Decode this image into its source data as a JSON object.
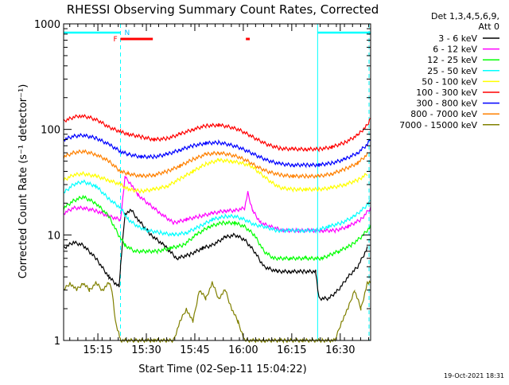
{
  "chart_data": {
    "type": "line",
    "title": "RHESSI Observing Summary Count Rates, Corrected",
    "xlabel": "Start Time (02-Sep-11 15:04:22)",
    "ylabel": "Corrected Count Rate (s⁻¹ detector⁻¹)",
    "x_unit": "minutes after 15:04:22",
    "xlim": [
      0,
      95
    ],
    "ylim": [
      1,
      1000
    ],
    "yscale": "log",
    "x_ticks": [
      {
        "t": 10.6,
        "label": "15:15"
      },
      {
        "t": 25.6,
        "label": "15:30"
      },
      {
        "t": 40.6,
        "label": "15:45"
      },
      {
        "t": 55.6,
        "label": "16:00"
      },
      {
        "t": 70.6,
        "label": "16:15"
      },
      {
        "t": 85.6,
        "label": "16:30"
      }
    ],
    "y_ticks": [
      {
        "v": 1,
        "label": "1"
      },
      {
        "v": 10,
        "label": "10"
      },
      {
        "v": 100,
        "label": "100"
      },
      {
        "v": 1000,
        "label": "1000"
      }
    ],
    "legend_header": [
      "Det 1,3,4,5,6,9,",
      "Att 0"
    ],
    "legend_position": "right",
    "grid": false,
    "night_spans": [
      [
        0,
        17.6
      ],
      [
        78.6,
        95
      ]
    ],
    "saa_mark": "N",
    "flare_mark": "F",
    "flare_spans": [
      [
        17.6,
        27.6
      ],
      [
        56.4,
        57.6
      ]
    ],
    "series": [
      {
        "name": "3 - 6 keV",
        "color": "#000000",
        "points": [
          [
            0,
            7.5
          ],
          [
            3,
            8.5
          ],
          [
            6,
            8
          ],
          [
            10,
            6
          ],
          [
            14,
            4
          ],
          [
            17.2,
            3.2
          ],
          [
            17.6,
            5
          ],
          [
            19,
            16
          ],
          [
            21,
            17
          ],
          [
            23,
            14
          ],
          [
            27,
            10
          ],
          [
            31,
            8
          ],
          [
            35,
            6
          ],
          [
            39,
            6.5
          ],
          [
            43,
            7.5
          ],
          [
            46,
            8
          ],
          [
            50,
            9.5
          ],
          [
            53,
            10
          ],
          [
            56,
            9
          ],
          [
            59,
            7
          ],
          [
            62,
            5
          ],
          [
            66,
            4.5
          ],
          [
            70,
            4.5
          ],
          [
            74,
            4.5
          ],
          [
            78,
            4.5
          ],
          [
            79,
            2.5
          ],
          [
            82,
            2.5
          ],
          [
            85,
            3
          ],
          [
            88,
            4
          ],
          [
            91,
            5
          ],
          [
            94,
            7.5
          ]
        ]
      },
      {
        "name": "6 - 12 keV",
        "color": "#ff00ff",
        "points": [
          [
            0,
            16
          ],
          [
            3,
            18
          ],
          [
            6,
            18
          ],
          [
            10,
            17
          ],
          [
            14,
            15
          ],
          [
            17.6,
            14
          ],
          [
            19,
            35
          ],
          [
            21,
            30
          ],
          [
            23,
            24
          ],
          [
            26,
            20
          ],
          [
            30,
            16
          ],
          [
            34,
            13
          ],
          [
            38,
            14
          ],
          [
            42,
            15
          ],
          [
            46,
            16
          ],
          [
            50,
            17
          ],
          [
            53,
            17
          ],
          [
            56,
            18
          ],
          [
            57,
            25
          ],
          [
            58.5,
            17
          ],
          [
            61,
            13
          ],
          [
            64,
            12
          ],
          [
            68,
            11
          ],
          [
            72,
            11
          ],
          [
            76,
            11
          ],
          [
            80,
            11
          ],
          [
            84,
            11
          ],
          [
            88,
            12
          ],
          [
            92,
            14
          ],
          [
            95,
            18
          ]
        ]
      },
      {
        "name": "12 - 25 keV",
        "color": "#00ff00",
        "points": [
          [
            0,
            18
          ],
          [
            3,
            21
          ],
          [
            6,
            23
          ],
          [
            10,
            20
          ],
          [
            14,
            15
          ],
          [
            17,
            10
          ],
          [
            19,
            8
          ],
          [
            22,
            7
          ],
          [
            25,
            7
          ],
          [
            29,
            7
          ],
          [
            33,
            7.5
          ],
          [
            37,
            8
          ],
          [
            41,
            10
          ],
          [
            45,
            12
          ],
          [
            49,
            13
          ],
          [
            53,
            13
          ],
          [
            56,
            12
          ],
          [
            59,
            10
          ],
          [
            62,
            7
          ],
          [
            65,
            6
          ],
          [
            70,
            6
          ],
          [
            75,
            6
          ],
          [
            80,
            6
          ],
          [
            85,
            7
          ],
          [
            89,
            8
          ],
          [
            92,
            9.5
          ],
          [
            95,
            12
          ]
        ]
      },
      {
        "name": "25 - 50 keV",
        "color": "#00ffff",
        "points": [
          [
            0,
            25
          ],
          [
            3,
            30
          ],
          [
            6,
            32
          ],
          [
            10,
            29
          ],
          [
            14,
            22
          ],
          [
            17.6,
            18
          ],
          [
            20,
            14
          ],
          [
            23,
            12
          ],
          [
            26,
            11
          ],
          [
            30,
            10.5
          ],
          [
            34,
            10
          ],
          [
            38,
            10.5
          ],
          [
            42,
            12
          ],
          [
            46,
            14
          ],
          [
            50,
            15
          ],
          [
            53,
            15
          ],
          [
            56,
            14
          ],
          [
            59,
            12.5
          ],
          [
            62,
            12
          ],
          [
            66,
            11
          ],
          [
            70,
            11
          ],
          [
            74,
            11
          ],
          [
            78,
            11
          ],
          [
            82,
            12
          ],
          [
            86,
            13
          ],
          [
            90,
            15
          ],
          [
            93,
            18
          ],
          [
            95,
            21
          ]
        ]
      },
      {
        "name": "50 - 100 keV",
        "color": "#ffff00",
        "points": [
          [
            0,
            33
          ],
          [
            3,
            37
          ],
          [
            6,
            38
          ],
          [
            10,
            36
          ],
          [
            14,
            33
          ],
          [
            17.6,
            30
          ],
          [
            20,
            27
          ],
          [
            24,
            26
          ],
          [
            28,
            27
          ],
          [
            32,
            29
          ],
          [
            36,
            34
          ],
          [
            40,
            40
          ],
          [
            44,
            47
          ],
          [
            48,
            51
          ],
          [
            52,
            50
          ],
          [
            55,
            48
          ],
          [
            58,
            45
          ],
          [
            61,
            38
          ],
          [
            64,
            32
          ],
          [
            67,
            28
          ],
          [
            71,
            27
          ],
          [
            75,
            27
          ],
          [
            79,
            27
          ],
          [
            83,
            28
          ],
          [
            87,
            30
          ],
          [
            91,
            33
          ],
          [
            94,
            38
          ]
        ]
      },
      {
        "name": "100 - 300 keV",
        "color": "#ff0000",
        "points": [
          [
            0,
            120
          ],
          [
            3,
            130
          ],
          [
            5,
            135
          ],
          [
            8,
            130
          ],
          [
            11,
            120
          ],
          [
            14,
            105
          ],
          [
            17.6,
            95
          ],
          [
            20,
            90
          ],
          [
            24,
            85
          ],
          [
            28,
            80
          ],
          [
            32,
            82
          ],
          [
            36,
            90
          ],
          [
            40,
            100
          ],
          [
            44,
            108
          ],
          [
            48,
            110
          ],
          [
            51,
            106
          ],
          [
            54,
            100
          ],
          [
            57,
            90
          ],
          [
            60,
            80
          ],
          [
            63,
            72
          ],
          [
            67,
            66
          ],
          [
            71,
            65
          ],
          [
            75,
            65
          ],
          [
            79,
            65
          ],
          [
            83,
            68
          ],
          [
            87,
            75
          ],
          [
            91,
            88
          ],
          [
            94,
            110
          ],
          [
            95,
            130
          ]
        ]
      },
      {
        "name": "300 - 800 keV",
        "color": "#0000ff",
        "points": [
          [
            0,
            80
          ],
          [
            3,
            86
          ],
          [
            6,
            88
          ],
          [
            10,
            83
          ],
          [
            14,
            72
          ],
          [
            17.6,
            62
          ],
          [
            20,
            58
          ],
          [
            24,
            55
          ],
          [
            28,
            55
          ],
          [
            32,
            58
          ],
          [
            36,
            64
          ],
          [
            40,
            70
          ],
          [
            44,
            74
          ],
          [
            48,
            75
          ],
          [
            51,
            72
          ],
          [
            54,
            68
          ],
          [
            57,
            62
          ],
          [
            60,
            56
          ],
          [
            63,
            51
          ],
          [
            67,
            47
          ],
          [
            71,
            46
          ],
          [
            75,
            46
          ],
          [
            79,
            46
          ],
          [
            83,
            48
          ],
          [
            87,
            52
          ],
          [
            91,
            60
          ],
          [
            94,
            72
          ],
          [
            95,
            82
          ]
        ]
      },
      {
        "name": "800 - 7000 keV",
        "color": "#ff8000",
        "points": [
          [
            0,
            55
          ],
          [
            3,
            60
          ],
          [
            6,
            62
          ],
          [
            10,
            58
          ],
          [
            14,
            50
          ],
          [
            17.6,
            40
          ],
          [
            20,
            38
          ],
          [
            24,
            36
          ],
          [
            28,
            37
          ],
          [
            32,
            40
          ],
          [
            36,
            45
          ],
          [
            40,
            52
          ],
          [
            44,
            58
          ],
          [
            48,
            60
          ],
          [
            51,
            58
          ],
          [
            54,
            55
          ],
          [
            57,
            50
          ],
          [
            60,
            44
          ],
          [
            63,
            40
          ],
          [
            67,
            37
          ],
          [
            71,
            36
          ],
          [
            75,
            36
          ],
          [
            79,
            36
          ],
          [
            83,
            38
          ],
          [
            87,
            42
          ],
          [
            91,
            48
          ],
          [
            94,
            58
          ]
        ]
      },
      {
        "name": "7000 - 15000 keV",
        "color": "#808000",
        "points": [
          [
            0,
            3
          ],
          [
            2,
            3.5
          ],
          [
            4,
            3
          ],
          [
            6,
            3.5
          ],
          [
            8,
            3
          ],
          [
            10,
            3.5
          ],
          [
            12,
            3
          ],
          [
            14,
            3.5
          ],
          [
            15,
            3
          ],
          [
            16,
            1.5
          ],
          [
            17,
            1.2
          ],
          [
            17.6,
            1
          ],
          [
            22,
            1
          ],
          [
            28,
            1
          ],
          [
            34,
            1
          ],
          [
            36,
            1.5
          ],
          [
            38,
            2
          ],
          [
            40,
            1.5
          ],
          [
            42,
            3
          ],
          [
            44,
            2.5
          ],
          [
            46,
            3.5
          ],
          [
            48,
            2.5
          ],
          [
            50,
            3
          ],
          [
            52,
            2
          ],
          [
            54,
            1.5
          ],
          [
            56,
            1
          ],
          [
            62,
            1
          ],
          [
            68,
            1
          ],
          [
            74,
            1
          ],
          [
            80,
            1
          ],
          [
            84,
            1
          ],
          [
            86,
            1.5
          ],
          [
            88,
            2
          ],
          [
            90,
            3
          ],
          [
            92,
            2
          ],
          [
            94,
            3.5
          ],
          [
            95,
            3.5
          ]
        ]
      }
    ]
  },
  "footer": {
    "timestamp": "19-Oct-2021 18:31"
  }
}
